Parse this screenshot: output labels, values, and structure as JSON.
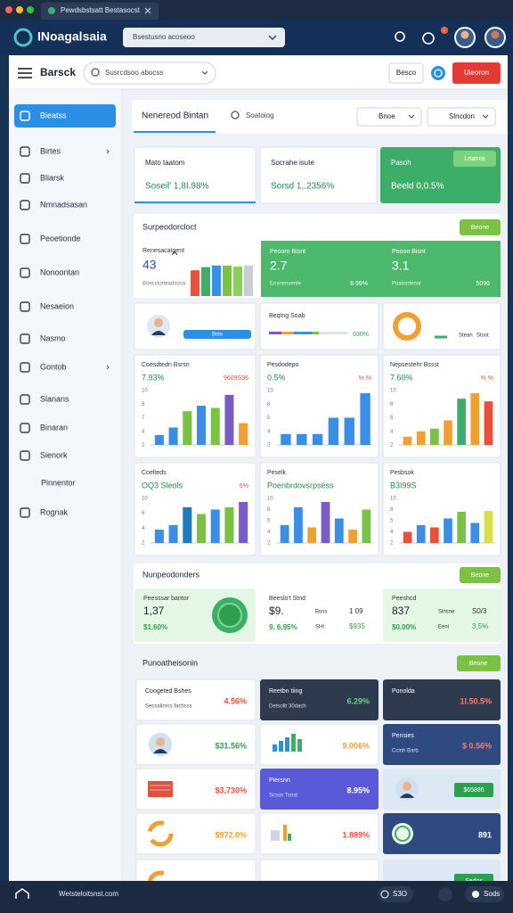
{
  "browser": {
    "tab": "Pewdsbstsatt Bestasocst"
  },
  "header": {
    "brand": "INoagalsaia",
    "select": "Bsestusno acoseoo"
  },
  "appbar": {
    "title": "Barsck",
    "search": "Susrcdsoo abocss",
    "button": "Besco",
    "action": "Uieoron"
  },
  "sidebar": {
    "items": [
      "Bieatss",
      "Birtes",
      "Bliarsk",
      "Nmnadsasan",
      "Peoetionde",
      "Nonoontan",
      "Nesaeion",
      "Nasmo",
      "Gontob",
      "Slanans",
      "Binaran",
      "Sienork",
      "Pinnentor",
      "Rognak"
    ]
  },
  "tabs": {
    "active": "Nenereod Bintan",
    "search": "Soatoiog",
    "filters": [
      "Bnoe",
      "Slncdon"
    ]
  },
  "kpis": [
    {
      "label": "Mato taatom",
      "value": "Soseil' 1,8I.98%"
    },
    {
      "label": "Socrahe isute",
      "value": "Sorsd 1,.2356%"
    },
    {
      "label": "Pasoh",
      "value": "Beeld 0,0.5%",
      "button": "Lrtatnia"
    }
  ],
  "summary": {
    "title": "Surpeodorcloct",
    "button": "Beone",
    "card": {
      "label": "Renesacatgent",
      "value": "43",
      "sub": "Boecstorteadsosa",
      "values": [
        80,
        90,
        95,
        95,
        92,
        95
      ],
      "colors": [
        "#e8503a",
        "#3dae6a",
        "#3a8ee6",
        "#7cc242",
        "#8bd05a",
        "#c9ced6"
      ]
    },
    "stats": [
      {
        "label": "Peooro Bisnt",
        "value": "2.7",
        "sub": "Ensnensenfe",
        "pct": "8 99%"
      },
      {
        "label": "Peooo Bisnt",
        "value": "3.1",
        "sub": "Poatordenor",
        "pct": "5096"
      }
    ]
  },
  "widgets": {
    "profile_button": "Bsts",
    "progress": {
      "label": "Beqtng Soab",
      "pct": "030%"
    },
    "donut": {
      "label": "Stean",
      "value": "Stost"
    }
  },
  "charts": [
    {
      "title": "Coesdtedn Bsrsn",
      "left": "7.93%",
      "right": "9609S96",
      "yticks": [
        "10",
        "8",
        "7",
        "4",
        "2"
      ],
      "values": [
        18,
        32,
        62,
        72,
        68,
        92,
        40
      ],
      "colors": [
        "#3a8ee6",
        "#3a8ee6",
        "#7cc242",
        "#3a8ee6",
        "#7cc242",
        "#7a5cc8",
        "#f0a030"
      ]
    },
    {
      "title": "Pesdodepo",
      "left": "0.5%",
      "right": "% %",
      "yticks": [
        "10",
        "8",
        "5",
        "4",
        "2"
      ],
      "values": [
        20,
        20,
        20,
        50,
        50,
        95
      ],
      "colors": [
        "#3a8ee6",
        "#3a8ee6",
        "#3a8ee6",
        "#3a8ee6",
        "#3a8ee6",
        "#3a8ee6"
      ]
    },
    {
      "title": "Nepsestehr Bssst",
      "left": "7.60%",
      "right": "% %",
      "yticks": [
        "10",
        "8",
        "5",
        "4",
        "2"
      ],
      "values": [
        15,
        25,
        30,
        45,
        85,
        95,
        80
      ],
      "colors": [
        "#f0a030",
        "#f0a030",
        "#7cc242",
        "#f0a030",
        "#3dae6a",
        "#f0a030",
        "#e8503a"
      ]
    },
    {
      "title": "Coelteds",
      "left": "OQ3 Sleols",
      "right": "6%",
      "yticks": [
        "10",
        "6",
        "4",
        "2"
      ],
      "values": [
        30,
        40,
        80,
        65,
        75,
        80,
        92
      ],
      "colors": [
        "#3a8ee6",
        "#3a8ee6",
        "#1f7ac0",
        "#7cc242",
        "#3a8ee6",
        "#7cc242",
        "#7a5cc8"
      ]
    },
    {
      "title": "Peselk",
      "left": "Poenbrdovsrpsess",
      "right": "",
      "yticks": [
        "10",
        "8",
        "5",
        "4",
        "2"
      ],
      "values": [
        40,
        80,
        35,
        92,
        55,
        30,
        75
      ],
      "colors": [
        "#3a8ee6",
        "#3a8ee6",
        "#f0a030",
        "#7a5cc8",
        "#3a8ee6",
        "#f0a030",
        "#7cc242"
      ]
    },
    {
      "title": "Pesbsok",
      "left": "B3I99S",
      "right": "",
      "yticks": [
        "10",
        "8",
        "5",
        "4",
        "2"
      ],
      "values": [
        25,
        40,
        35,
        55,
        70,
        45,
        72
      ],
      "colors": [
        "#e8503a",
        "#3a8ee6",
        "#e8503a",
        "#3a8ee6",
        "#7cc242",
        "#3a8ee6",
        "#d6e04a"
      ]
    }
  ],
  "section2": {
    "title": "Nunpeodonders",
    "button": "Beone",
    "stats": [
      {
        "label": "Peesssar bantor",
        "value": "1,37",
        "pct": "$1.60%",
        "notes": []
      },
      {
        "label": "Beeslo't Stnd",
        "value": "$9.",
        "pct": "9, 6,95%",
        "notes": [
          "Boss",
          "1 09",
          "SHt",
          "$935"
        ]
      },
      {
        "label": "Peeshcd",
        "value": "837",
        "pct": "$0.00%",
        "notes": [
          "Sinsne",
          "S0/3",
          "Eeni",
          "3,5%"
        ]
      }
    ]
  },
  "section3": {
    "title": "Punoatheisonin",
    "button": "Beone",
    "tiles": [
      {
        "theme": "white",
        "label": "Coogeted Bshes",
        "sub": "Secsalinrcs fachsss",
        "value": "4.56%",
        "color": "#e8503a"
      },
      {
        "theme": "dark",
        "label": "Reetbn tiing",
        "sub": "Detsolb 30dach",
        "value": "6.29%",
        "color": "#5fd47a"
      },
      {
        "theme": "dark",
        "label": "Ponolda",
        "value": "1I.50.5%",
        "color": "#ff7b6b"
      },
      {
        "theme": "white",
        "icon": "avatar",
        "value": "$31.56%",
        "color": "#2e9e4f"
      },
      {
        "theme": "white",
        "icon": "bars",
        "value": "9.006%",
        "color": "#f0a030"
      },
      {
        "theme": "navy",
        "label": "Pensies",
        "sub": "Ccinh Barb",
        "value": "$ 0.56%",
        "color": "#ff7b6b"
      },
      {
        "theme": "white",
        "icon": "flag",
        "value": "$3,730%",
        "color": "#e8503a"
      },
      {
        "theme": "purple",
        "label": "Piersnn",
        "sub": "Scssn Tsnst",
        "value": "8.95%",
        "color": "#ffffff"
      },
      {
        "theme": "light",
        "icon": "avatar",
        "button": "$65886"
      },
      {
        "theme": "white",
        "icon": "donut",
        "value": "$972.0%",
        "color": "#f0a030"
      },
      {
        "theme": "white",
        "icon": "chart",
        "value": "1.889%",
        "color": "#e8503a"
      },
      {
        "theme": "navy",
        "icon": "seal",
        "value": "891",
        "color": "#ffffff"
      },
      {
        "theme": "white",
        "icon": "donut"
      },
      {
        "theme": "white"
      },
      {
        "theme": "light",
        "button": "Sedos"
      }
    ]
  },
  "footer": {
    "url": "Wetsteloitsnst.com",
    "items": [
      "S3O",
      "Sods"
    ]
  }
}
